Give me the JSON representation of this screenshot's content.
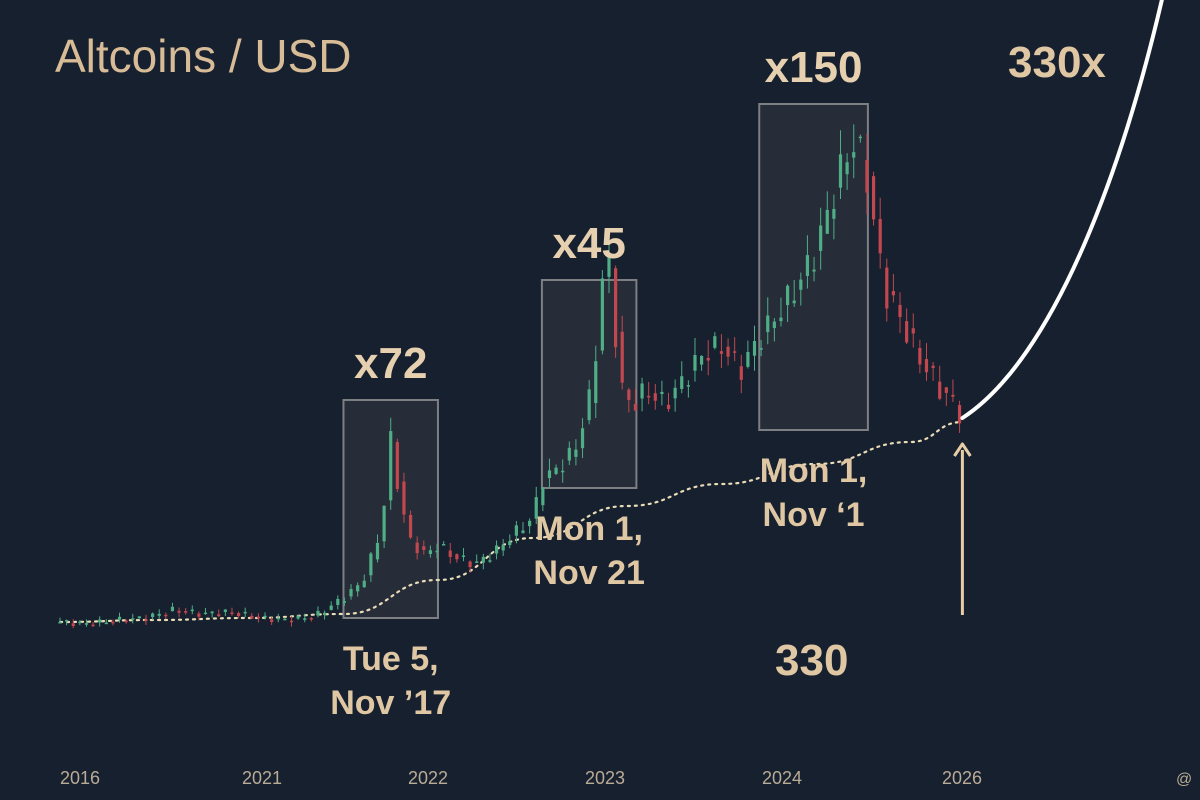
{
  "title": "Altcoins / USD",
  "colors": {
    "background": "#16202e",
    "up": "#4fae86",
    "down": "#c2474f",
    "text": "#e0c7a4",
    "box_fill": "#3a3f47",
    "box_stroke": "#7d7f82",
    "trend": "#e9dcb6",
    "arrow": "#ffffff",
    "marker_arrow": "#e6cda6"
  },
  "projection_label": "330x",
  "current_value_label": "330",
  "corner_symbol": "@",
  "chart_data": {
    "type": "line",
    "title": "Altcoins / USD",
    "xlabel": "",
    "ylabel": "",
    "x_ticks": [
      "2016",
      "2021",
      "2022",
      "2023",
      "2024",
      "2026"
    ],
    "grid": false,
    "legend": "none",
    "y_scale_note": "no y-axis printed",
    "series": [
      {
        "values": [
          [
            0.0,
            1.4
          ],
          [
            0.3,
            1.3
          ],
          [
            0.6,
            1.5
          ],
          [
            0.9,
            1.6
          ],
          [
            1.2,
            2.0
          ],
          [
            1.5,
            1.8
          ],
          [
            1.8,
            1.9
          ],
          [
            2.1,
            1.6
          ],
          [
            2.4,
            1.5
          ],
          [
            2.7,
            1.7
          ],
          [
            3.0,
            2.6
          ],
          [
            3.2,
            3.4
          ],
          [
            3.4,
            6.0
          ],
          [
            3.5,
            10.5
          ],
          [
            3.6,
            7.5
          ],
          [
            3.7,
            5.5
          ],
          [
            3.85,
            4.8
          ],
          [
            4.0,
            5.2
          ],
          [
            4.2,
            4.6
          ],
          [
            4.4,
            4.3
          ],
          [
            4.6,
            4.9
          ],
          [
            4.8,
            5.8
          ],
          [
            5.0,
            6.6
          ],
          [
            5.1,
            8.5
          ],
          [
            5.25,
            9.0
          ],
          [
            5.45,
            10.0
          ],
          [
            5.6,
            12.5
          ],
          [
            5.7,
            16.0
          ],
          [
            5.78,
            21.0
          ],
          [
            5.85,
            17.0
          ],
          [
            5.95,
            13.0
          ],
          [
            6.05,
            12.2
          ],
          [
            6.2,
            13.0
          ],
          [
            6.4,
            12.3
          ],
          [
            6.6,
            13.5
          ],
          [
            6.8,
            14.8
          ],
          [
            7.0,
            15.2
          ],
          [
            7.2,
            14.0
          ],
          [
            7.4,
            15.6
          ],
          [
            7.55,
            16.5
          ],
          [
            7.7,
            17.5
          ],
          [
            7.85,
            18.6
          ],
          [
            8.0,
            20.0
          ],
          [
            8.1,
            21.5
          ],
          [
            8.2,
            23.0
          ],
          [
            8.3,
            24.5
          ],
          [
            8.42,
            25.5
          ],
          [
            8.55,
            23.5
          ],
          [
            8.65,
            20.0
          ],
          [
            8.75,
            17.8
          ],
          [
            8.85,
            17.0
          ],
          [
            8.95,
            16.0
          ],
          [
            9.05,
            15.0
          ],
          [
            9.15,
            14.2
          ],
          [
            9.25,
            13.5
          ],
          [
            9.35,
            12.8
          ],
          [
            9.45,
            12.4
          ],
          [
            9.55,
            11.6
          ]
        ]
      },
      {
        "values": [
          [
            0.0,
            1.4
          ],
          [
            1.0,
            1.5
          ],
          [
            2.0,
            1.6
          ],
          [
            3.0,
            1.8
          ],
          [
            4.0,
            3.5
          ],
          [
            5.0,
            5.6
          ],
          [
            6.0,
            7.2
          ],
          [
            7.0,
            8.3
          ],
          [
            8.0,
            9.3
          ],
          [
            9.0,
            10.4
          ],
          [
            9.55,
            11.4
          ]
        ]
      }
    ],
    "cycles": [
      {
        "multiplier": "x72",
        "date_line1": "Tue 5,",
        "date_line2": "Nov ’17",
        "x_start": 3.0,
        "x_end": 4.0,
        "y_low": 1.6,
        "y_high": 12.5
      },
      {
        "multiplier": "x45",
        "date_line1": "Mon 1,",
        "date_line2": "Nov 21",
        "x_start": 5.1,
        "x_end": 6.1,
        "y_low": 8.1,
        "y_high": 18.5
      },
      {
        "multiplier": "x150",
        "date_line1": "Mon 1,",
        "date_line2": "Nov ‘1",
        "x_start": 7.4,
        "x_end": 8.55,
        "y_low": 11.0,
        "y_high": 27.3
      }
    ],
    "projection": {
      "label": "330x",
      "points": [
        [
          9.55,
          11.6
        ],
        [
          10.5,
          14.5
        ],
        [
          11.3,
          24.0
        ],
        [
          11.8,
          35.5
        ]
      ]
    },
    "current": {
      "x": 9.55,
      "y": 11.4,
      "label": "330"
    }
  }
}
